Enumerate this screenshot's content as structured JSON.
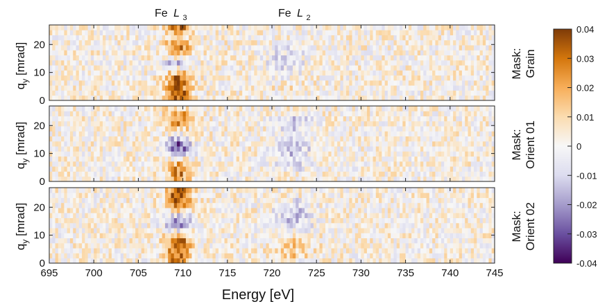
{
  "figure": {
    "peak_labels": [
      {
        "element": "Fe",
        "edge": "L",
        "sub": "3",
        "energy": 708.5
      },
      {
        "element": "Fe",
        "edge": "L",
        "sub": "2",
        "energy": 721.5
      }
    ],
    "xlabel": "Energy [eV]",
    "ylabel_main": "q",
    "ylabel_sub": "y",
    "ylabel_unit": " [mrad]",
    "colorbar_ticks": [
      "0.04",
      "0.03",
      "0.02",
      "0.01",
      "0",
      "-0.01",
      "-0.02",
      "-0.03",
      "-0.04"
    ]
  },
  "panels": [
    {
      "mask_line1": "Mask:",
      "mask_line2": "Grain"
    },
    {
      "mask_line1": "Mask:",
      "mask_line2": "Orient 01"
    },
    {
      "mask_line1": "Mask:",
      "mask_line2": "Orient 02"
    }
  ],
  "chart_data": [
    {
      "type": "heatmap",
      "title": "",
      "xlabel": "Energy [eV]",
      "ylabel": "q_y [mrad]",
      "xlim": [
        695,
        745
      ],
      "ylim": [
        0,
        27
      ],
      "xticks": [
        695,
        700,
        705,
        710,
        715,
        720,
        725,
        730,
        735,
        740,
        745
      ],
      "yticks": [
        0,
        10,
        20
      ],
      "panel_label": "Mask: Grain",
      "features": [
        {
          "energy": 709.5,
          "qy_range": [
            0,
            27
          ],
          "values_by_qy": [
            [
              0,
              0.032
            ],
            [
              4,
              0.035
            ],
            [
              8,
              0.03
            ],
            [
              11,
              0.005
            ],
            [
              13.5,
              -0.018
            ],
            [
              16,
              0.012
            ],
            [
              20,
              0.028
            ],
            [
              23,
              0.01
            ],
            [
              26,
              0.032
            ]
          ]
        },
        {
          "energy": 721.5,
          "qy_range": [
            5,
            20
          ],
          "values_by_qy": [
            [
              5,
              0.004
            ],
            [
              10,
              -0.01
            ],
            [
              15,
              -0.012
            ],
            [
              20,
              -0.004
            ]
          ]
        }
      ]
    },
    {
      "type": "heatmap",
      "title": "",
      "xlabel": "Energy [eV]",
      "ylabel": "q_y [mrad]",
      "xlim": [
        695,
        745
      ],
      "ylim": [
        0,
        27
      ],
      "xticks": [
        695,
        700,
        705,
        710,
        715,
        720,
        725,
        730,
        735,
        740,
        745
      ],
      "yticks": [
        0,
        10,
        20
      ],
      "panel_label": "Mask: Orient 01",
      "features": [
        {
          "energy": 709.5,
          "qy_range": [
            0,
            27
          ],
          "values_by_qy": [
            [
              0,
              0.018
            ],
            [
              3,
              0.026
            ],
            [
              7,
              0.014
            ],
            [
              10,
              -0.022
            ],
            [
              13,
              -0.034
            ],
            [
              16,
              -0.01
            ],
            [
              20,
              0.02
            ],
            [
              23,
              0.028
            ],
            [
              26,
              0.012
            ]
          ]
        },
        {
          "energy": 722.5,
          "qy_range": [
            5,
            22
          ],
          "values_by_qy": [
            [
              5,
              -0.006
            ],
            [
              10,
              -0.014
            ],
            [
              15,
              -0.012
            ],
            [
              20,
              -0.01
            ]
          ]
        }
      ]
    },
    {
      "type": "heatmap",
      "title": "",
      "xlabel": "Energy [eV]",
      "ylabel": "q_y [mrad]",
      "xlim": [
        695,
        745
      ],
      "ylim": [
        0,
        27
      ],
      "xticks": [
        695,
        700,
        705,
        710,
        715,
        720,
        725,
        730,
        735,
        740,
        745
      ],
      "yticks": [
        0,
        10,
        20
      ],
      "panel_label": "Mask: Orient 02",
      "features": [
        {
          "energy": 709.5,
          "qy_range": [
            0,
            27
          ],
          "values_by_qy": [
            [
              0,
              0.03
            ],
            [
              5,
              0.036
            ],
            [
              9,
              0.03
            ],
            [
              11,
              0.004
            ],
            [
              14,
              -0.034
            ],
            [
              17,
              -0.012
            ],
            [
              21,
              0.028
            ],
            [
              24,
              0.032
            ],
            [
              26,
              0.03
            ]
          ]
        },
        {
          "energy": 722.5,
          "qy_range": [
            3,
            22
          ],
          "values_by_qy": [
            [
              3,
              0.01
            ],
            [
              8,
              0.012
            ],
            [
              13,
              -0.012
            ],
            [
              18,
              -0.014
            ],
            [
              22,
              -0.006
            ]
          ]
        }
      ]
    }
  ],
  "colorbar": {
    "range": [
      -0.04,
      0.04
    ],
    "colormap": "PuOr",
    "stops": [
      "#3f0057",
      "#6a50a0",
      "#a59ccb",
      "#dcdcef",
      "#f7f7f7",
      "#fbdcb0",
      "#f7ae5a",
      "#d4760c",
      "#7e3b08"
    ]
  }
}
